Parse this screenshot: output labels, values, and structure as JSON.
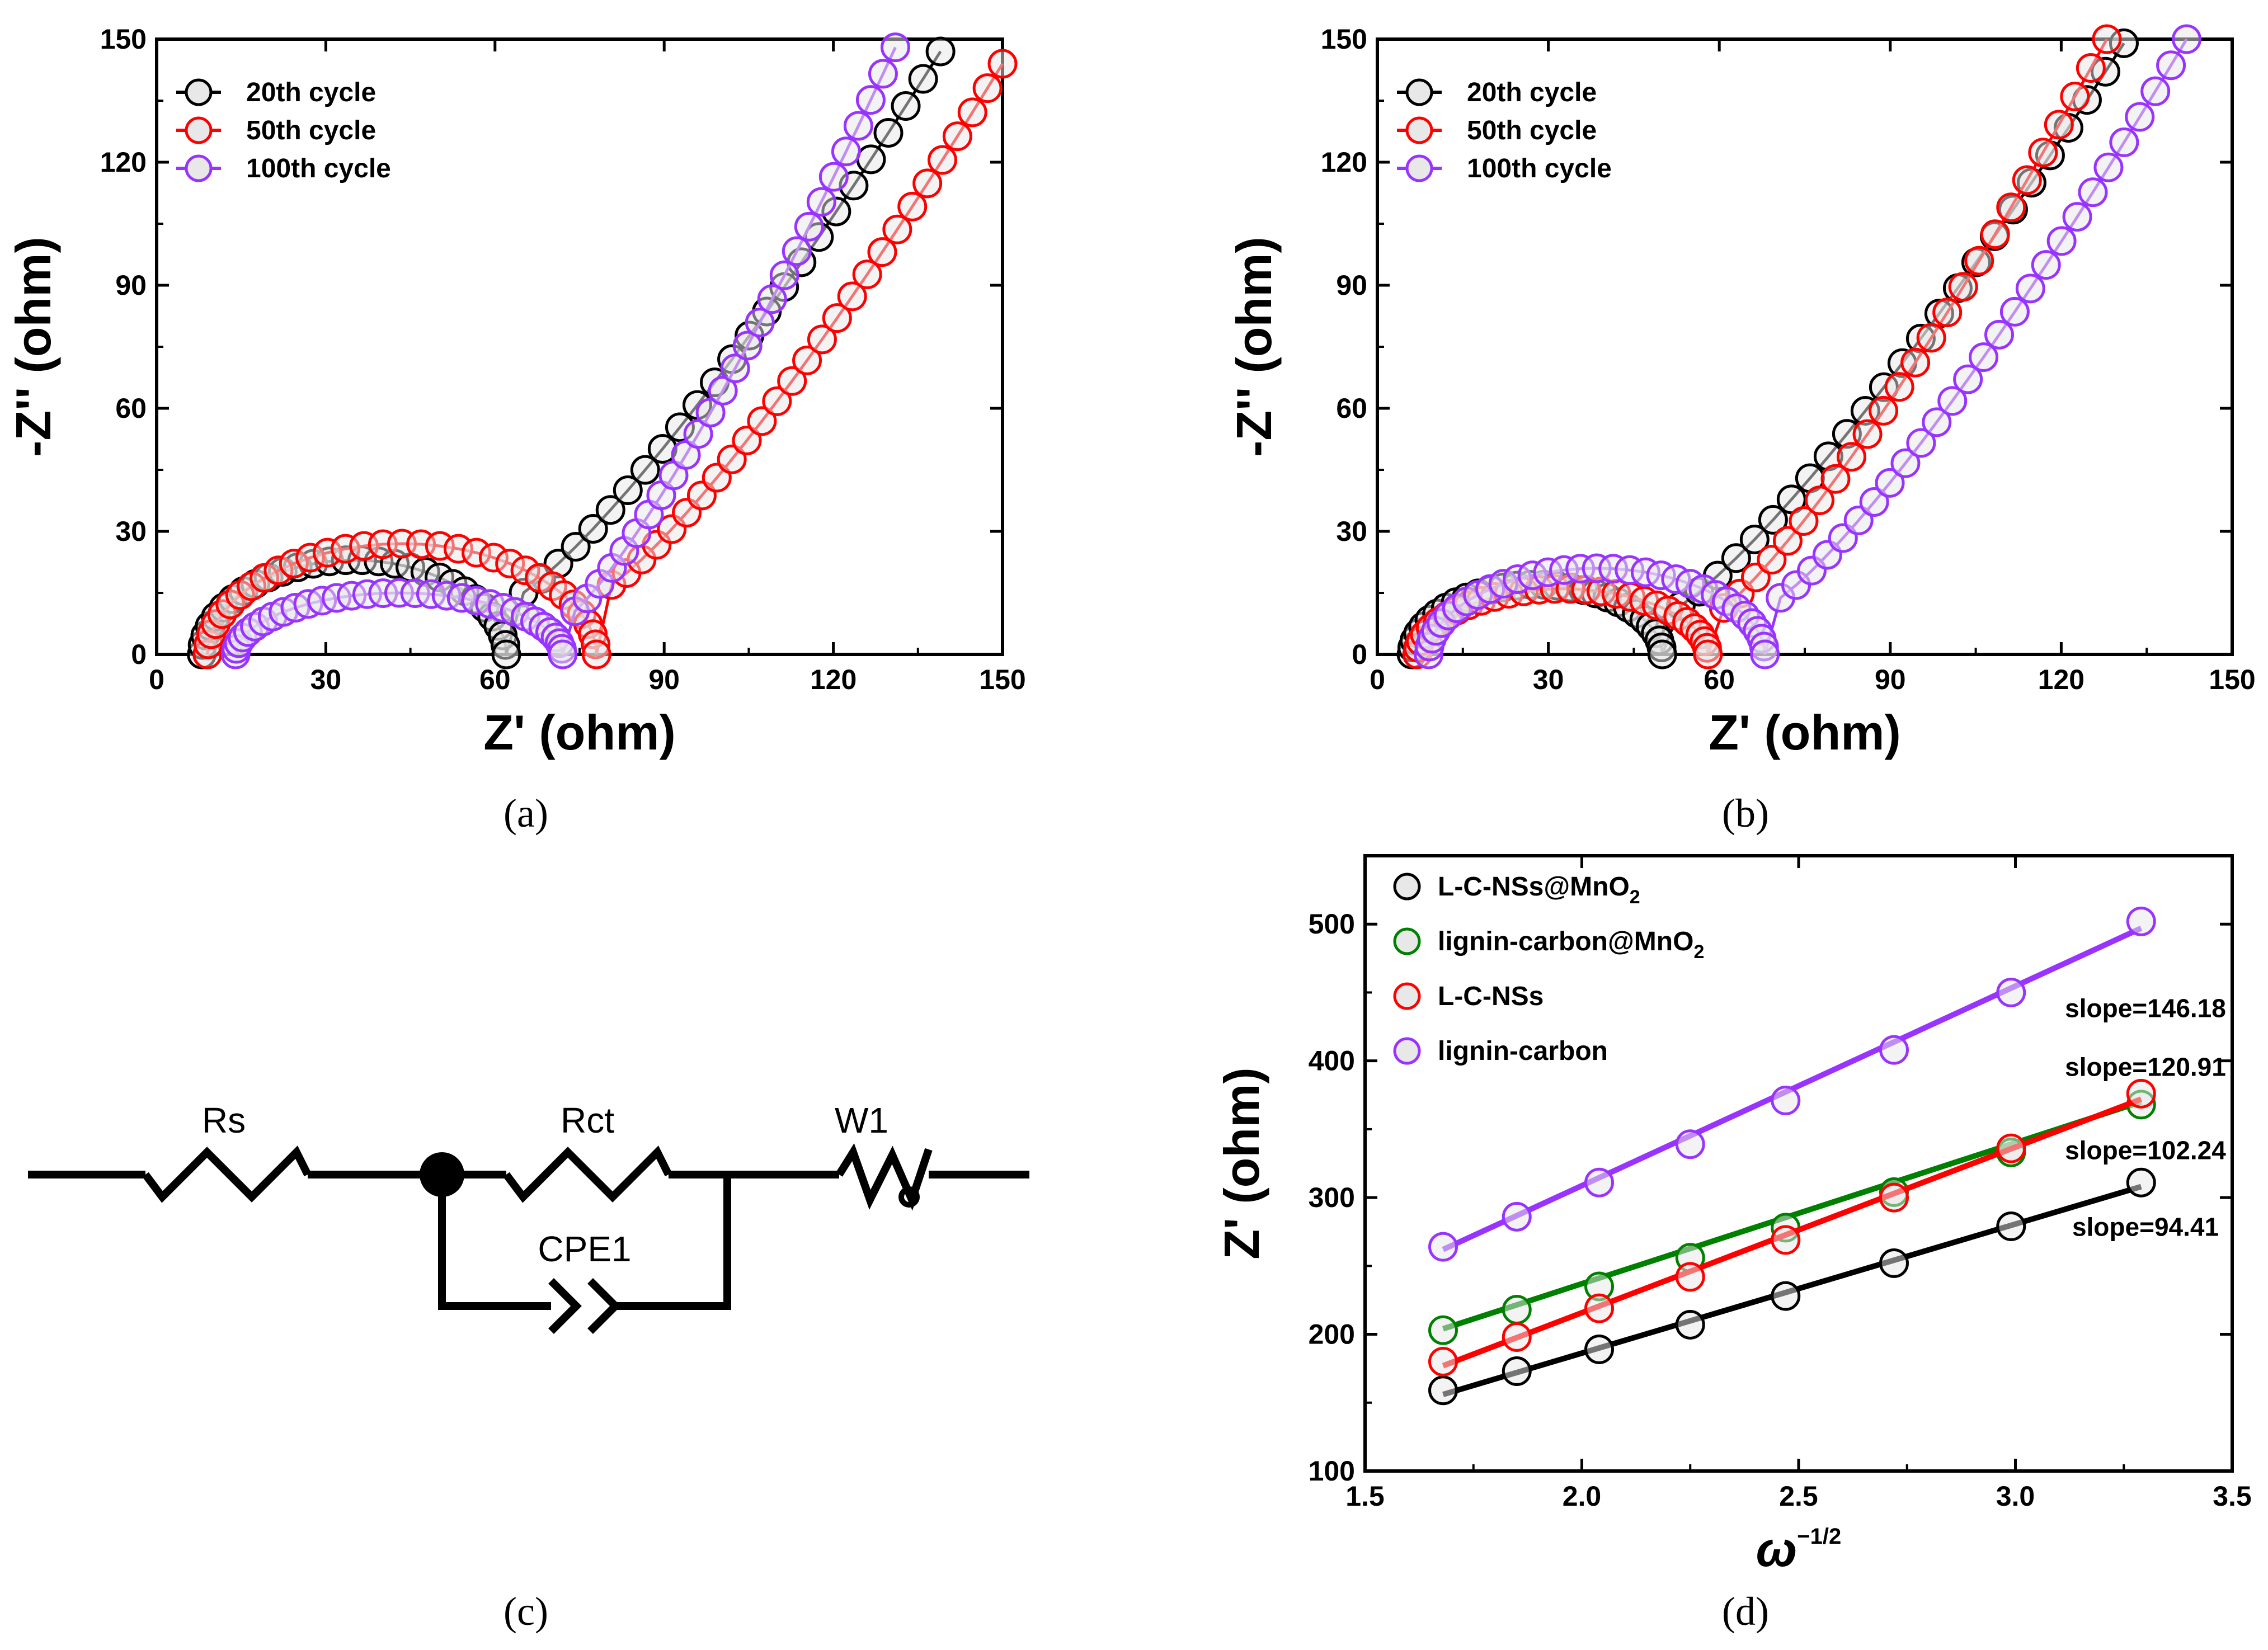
{
  "panels": [
    {
      "id": "a",
      "label": "(a)"
    },
    {
      "id": "b",
      "label": "(b)"
    },
    {
      "id": "c",
      "label": "(c)"
    },
    {
      "id": "d",
      "label": "(d)"
    }
  ],
  "circuit": {
    "labels": {
      "rs": "Rs",
      "rct": "Rct",
      "cpe": "CPE1",
      "w": "W1"
    }
  },
  "chart_data": [
    {
      "panel": "a",
      "type": "scatter",
      "xlabel": "Z' (ohm)",
      "ylabel": "-Z'' (ohm)",
      "xlim": [
        0,
        150
      ],
      "ylim": [
        0,
        150
      ],
      "xticks": [
        0,
        30,
        60,
        90,
        120,
        150
      ],
      "yticks": [
        0,
        30,
        60,
        90,
        120,
        150
      ],
      "legend": "top-left",
      "series": [
        {
          "name": "20th cycle",
          "color": "#000000",
          "arc": {
            "x0": 8,
            "x1": 62,
            "h": 23
          },
          "tail": {
            "x0": 62,
            "x1": 139,
            "y1": 147
          },
          "n": 55
        },
        {
          "name": "50th cycle",
          "color": "#ff0000",
          "arc": {
            "x0": 9,
            "x1": 78,
            "h": 27
          },
          "tail": {
            "x0": 78,
            "x1": 150,
            "y1": 144
          },
          "n": 60
        },
        {
          "name": "100th cycle",
          "color": "#9933ff",
          "arc": {
            "x0": 14,
            "x1": 72,
            "h": 15
          },
          "tail": {
            "x0": 72,
            "x1": 131,
            "y1": 148
          },
          "n": 60
        }
      ]
    },
    {
      "panel": "b",
      "type": "scatter",
      "xlabel": "Z' (ohm)",
      "ylabel": "-Z'' (ohm)",
      "xlim": [
        0,
        150
      ],
      "ylim": [
        0,
        150
      ],
      "xticks": [
        0,
        30,
        60,
        90,
        120,
        150
      ],
      "yticks": [
        0,
        30,
        60,
        90,
        120,
        150
      ],
      "legend": "top-left",
      "series": [
        {
          "name": "20th cycle",
          "color": "#000000",
          "arc": {
            "x0": 6,
            "x1": 50,
            "h": 17
          },
          "tail": {
            "x0": 50,
            "x1": 131,
            "y1": 149
          },
          "n": 55
        },
        {
          "name": "50th cycle",
          "color": "#ff0000",
          "arc": {
            "x0": 7,
            "x1": 58,
            "h": 16
          },
          "tail": {
            "x0": 58,
            "x1": 128,
            "y1": 150
          },
          "n": 55
        },
        {
          "name": "100th cycle",
          "color": "#9933ff",
          "arc": {
            "x0": 9,
            "x1": 68,
            "h": 21
          },
          "tail": {
            "x0": 68,
            "x1": 142,
            "y1": 150
          },
          "n": 60
        }
      ]
    },
    {
      "panel": "d",
      "type": "scatter",
      "xlabel": "ω",
      "xlabel_sup": "−1/2",
      "ylabel": "Z' (ohm)",
      "xlim": [
        1.5,
        3.5
      ],
      "ylim": [
        100,
        550
      ],
      "xticks": [
        1.5,
        2.0,
        2.5,
        3.0,
        3.5
      ],
      "yticks": [
        100,
        200,
        300,
        400,
        500
      ],
      "legend": "top-left",
      "x": [
        1.68,
        1.85,
        2.04,
        2.25,
        2.47,
        2.72,
        2.99,
        3.29
      ],
      "series": [
        {
          "name": "L-C-NSs@MnO",
          "sub": "2",
          "color": "#000000",
          "values": [
            159,
            173,
            189,
            207,
            228,
            252,
            279,
            311
          ],
          "fit": {
            "x": [
              1.68,
              3.29
            ],
            "y": [
              156,
              308
            ]
          },
          "annotation": "slope=94.41",
          "annotation_color": "#000000",
          "annotation_at": [
            3.3,
            272
          ]
        },
        {
          "name": "lignin-carbon@MnO",
          "sub": "2",
          "color": "#008000",
          "values": [
            203,
            218,
            235,
            256,
            278,
            304,
            333,
            368
          ],
          "fit": {
            "x": [
              1.68,
              3.29
            ],
            "y": [
              204,
              370
            ]
          },
          "annotation": "slope=102.24",
          "annotation_color": "#008000",
          "annotation_at": [
            3.3,
            328
          ]
        },
        {
          "name": "L-C-NSs",
          "sub": "",
          "color": "#ff0000",
          "values": [
            180,
            198,
            219,
            242,
            269,
            300,
            336,
            376
          ],
          "fit": {
            "x": [
              1.68,
              3.29
            ],
            "y": [
              177,
              372
            ]
          },
          "annotation": "slope=120.91",
          "annotation_color": "#ff0000",
          "annotation_at": [
            3.3,
            389
          ]
        },
        {
          "name": "lignin-carbon",
          "sub": "",
          "color": "#9933ff",
          "values": [
            264,
            286,
            311,
            339,
            371,
            408,
            450,
            502
          ],
          "fit": {
            "x": [
              1.68,
              3.29
            ],
            "y": [
              262,
              497
            ]
          },
          "annotation": "slope=146.18",
          "annotation_color": "#9933ff",
          "annotation_at": [
            3.3,
            432
          ]
        }
      ]
    }
  ]
}
